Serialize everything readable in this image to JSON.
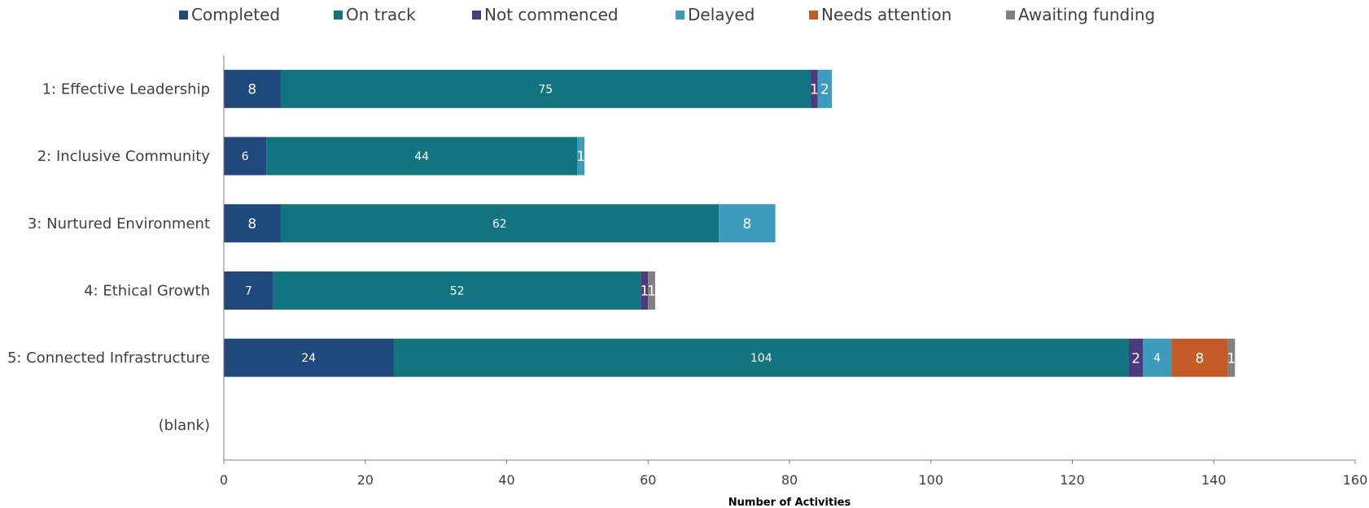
{
  "chart_data": {
    "type": "bar",
    "orientation": "horizontal",
    "stacked": true,
    "title": "",
    "xlabel": "Number of Activities",
    "ylabel": "",
    "xlim": [
      0,
      160
    ],
    "xticks": [
      0,
      20,
      40,
      60,
      80,
      100,
      120,
      140,
      160
    ],
    "grid": false,
    "legend_position": "top",
    "categories": [
      "1: Effective Leadership",
      "2: Inclusive Community",
      "3: Nurtured Environment",
      "4: Ethical Growth",
      "5: Connected Infrastructure",
      "(blank)"
    ],
    "series": [
      {
        "name": "Completed",
        "color": "#1f497d",
        "values": [
          8,
          6,
          8,
          7,
          24,
          null
        ]
      },
      {
        "name": "On track",
        "color": "#12747f",
        "values": [
          75,
          44,
          62,
          52,
          104,
          null
        ]
      },
      {
        "name": "Not commenced",
        "color": "#4b3a80",
        "values": [
          1,
          null,
          null,
          1,
          2,
          null
        ]
      },
      {
        "name": "Delayed",
        "color": "#3d9bbd",
        "values": [
          2,
          1,
          8,
          null,
          4,
          null
        ]
      },
      {
        "name": "Needs attention",
        "color": "#c55a29",
        "values": [
          null,
          null,
          null,
          null,
          8,
          null
        ]
      },
      {
        "name": "Awaiting funding",
        "color": "#808080",
        "values": [
          null,
          null,
          null,
          1,
          1,
          null
        ]
      }
    ]
  }
}
